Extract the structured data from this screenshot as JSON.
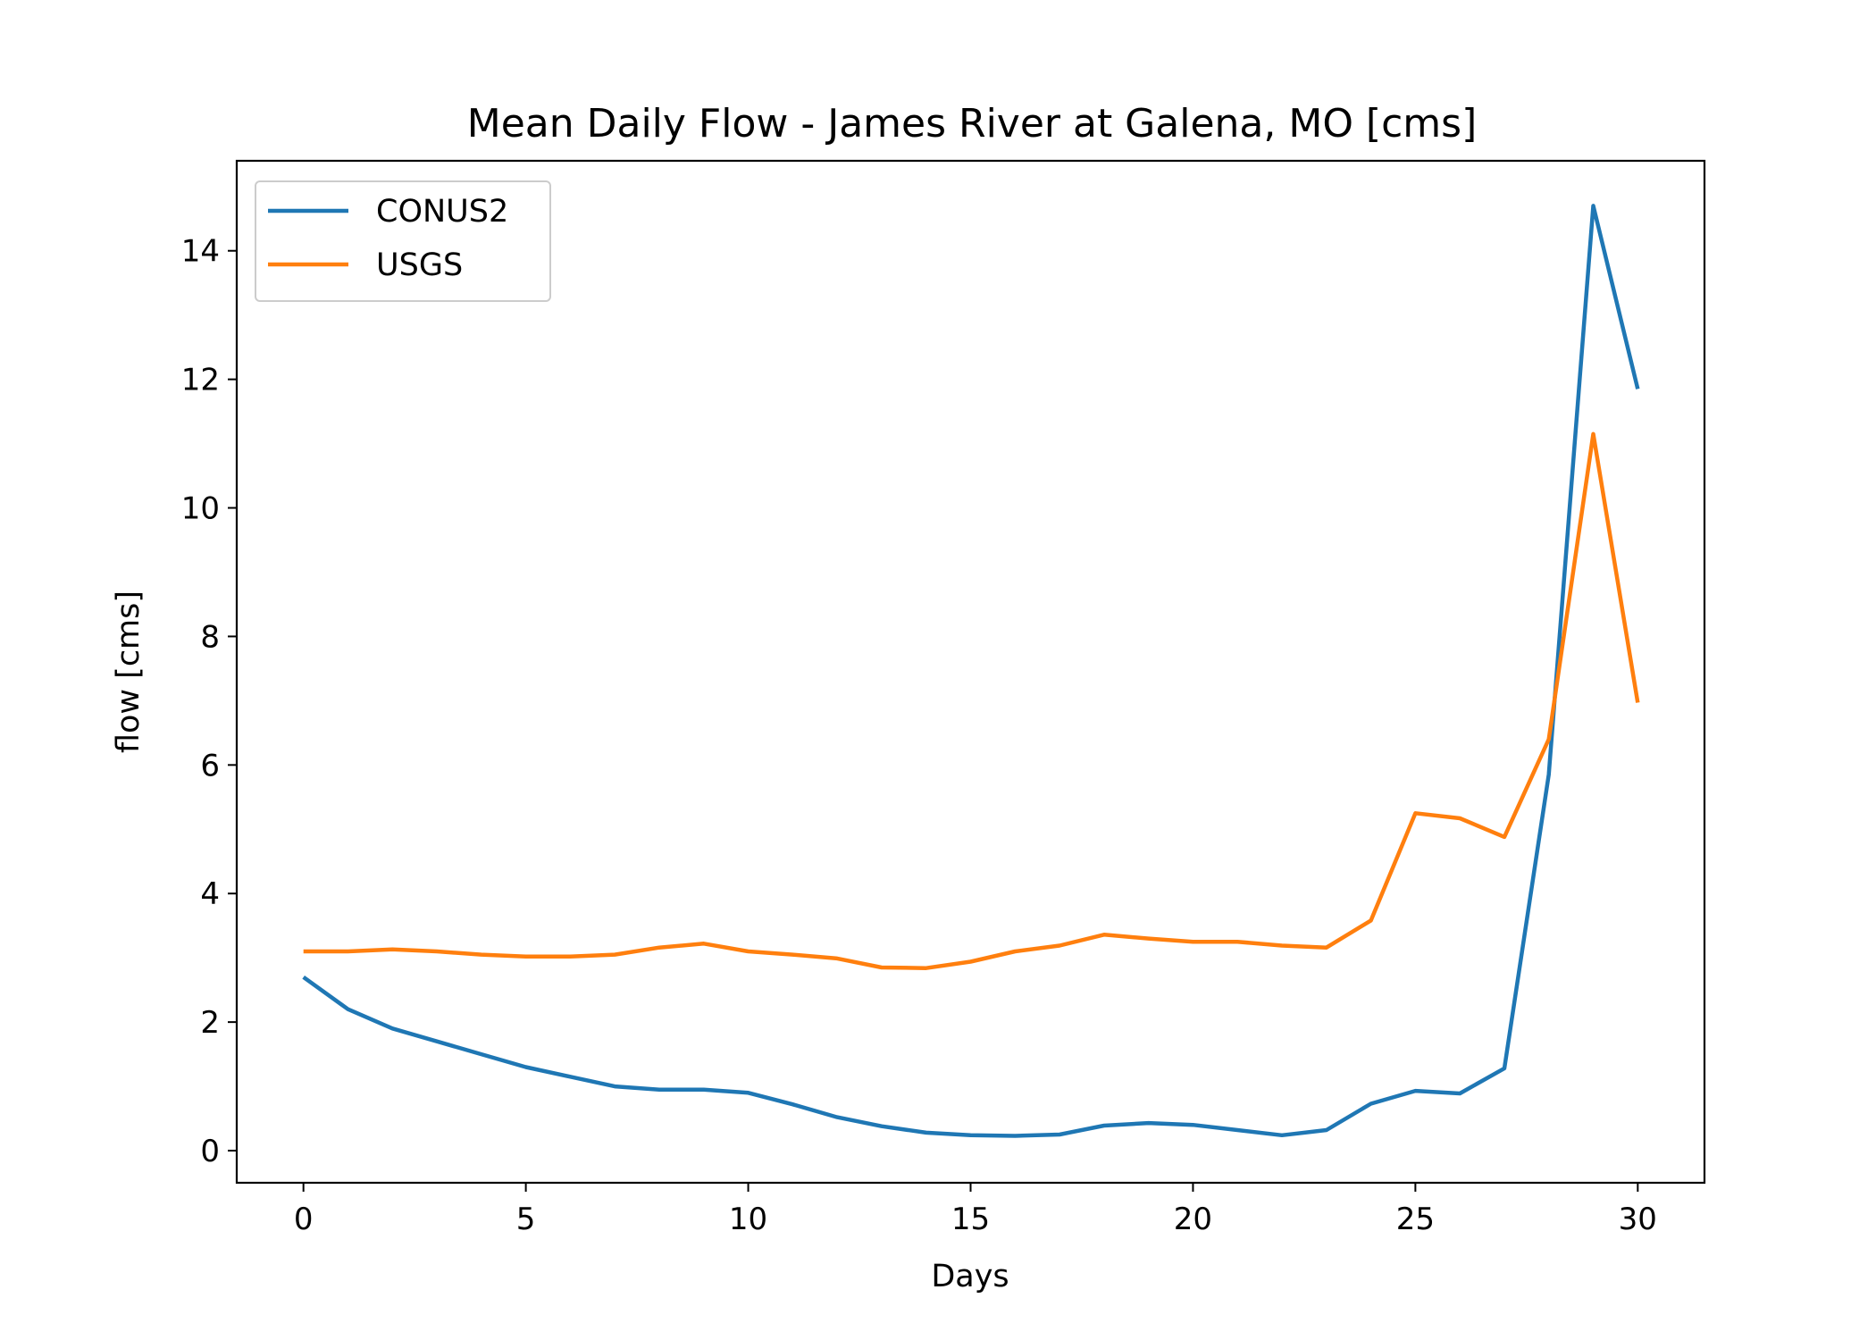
{
  "chart_data": {
    "type": "line",
    "title": "Mean Daily Flow - James River at Galena, MO [cms]",
    "xlabel": "Days",
    "ylabel": "flow [cms]",
    "xlim": [
      -1.5,
      31.5
    ],
    "ylim": [
      -0.5,
      15.4
    ],
    "xticks": [
      0,
      5,
      10,
      15,
      20,
      25,
      30
    ],
    "yticks": [
      0,
      2,
      4,
      6,
      8,
      10,
      12,
      14
    ],
    "grid": false,
    "legend_position": "top-left",
    "x": [
      0,
      1,
      2,
      3,
      4,
      5,
      6,
      7,
      8,
      9,
      10,
      11,
      12,
      13,
      14,
      15,
      16,
      17,
      18,
      19,
      20,
      21,
      22,
      23,
      24,
      25,
      26,
      27,
      28,
      29,
      30
    ],
    "series": [
      {
        "name": "CONUS2",
        "color": "#1f77b4",
        "values": [
          2.7,
          2.2,
          1.9,
          1.7,
          1.5,
          1.3,
          1.15,
          1.0,
          0.95,
          0.95,
          0.9,
          0.72,
          0.52,
          0.38,
          0.28,
          0.24,
          0.23,
          0.25,
          0.39,
          0.43,
          0.4,
          0.32,
          0.24,
          0.32,
          0.73,
          0.93,
          0.89,
          1.28,
          5.85,
          14.7,
          11.85
        ]
      },
      {
        "name": "USGS",
        "color": "#ff7f0e",
        "values": [
          3.1,
          3.1,
          3.13,
          3.1,
          3.05,
          3.02,
          3.02,
          3.05,
          3.16,
          3.22,
          3.1,
          3.05,
          2.99,
          2.85,
          2.84,
          2.94,
          3.1,
          3.19,
          3.36,
          3.3,
          3.25,
          3.25,
          3.19,
          3.16,
          3.58,
          5.25,
          5.17,
          4.88,
          6.4,
          11.15,
          6.97
        ]
      }
    ]
  }
}
